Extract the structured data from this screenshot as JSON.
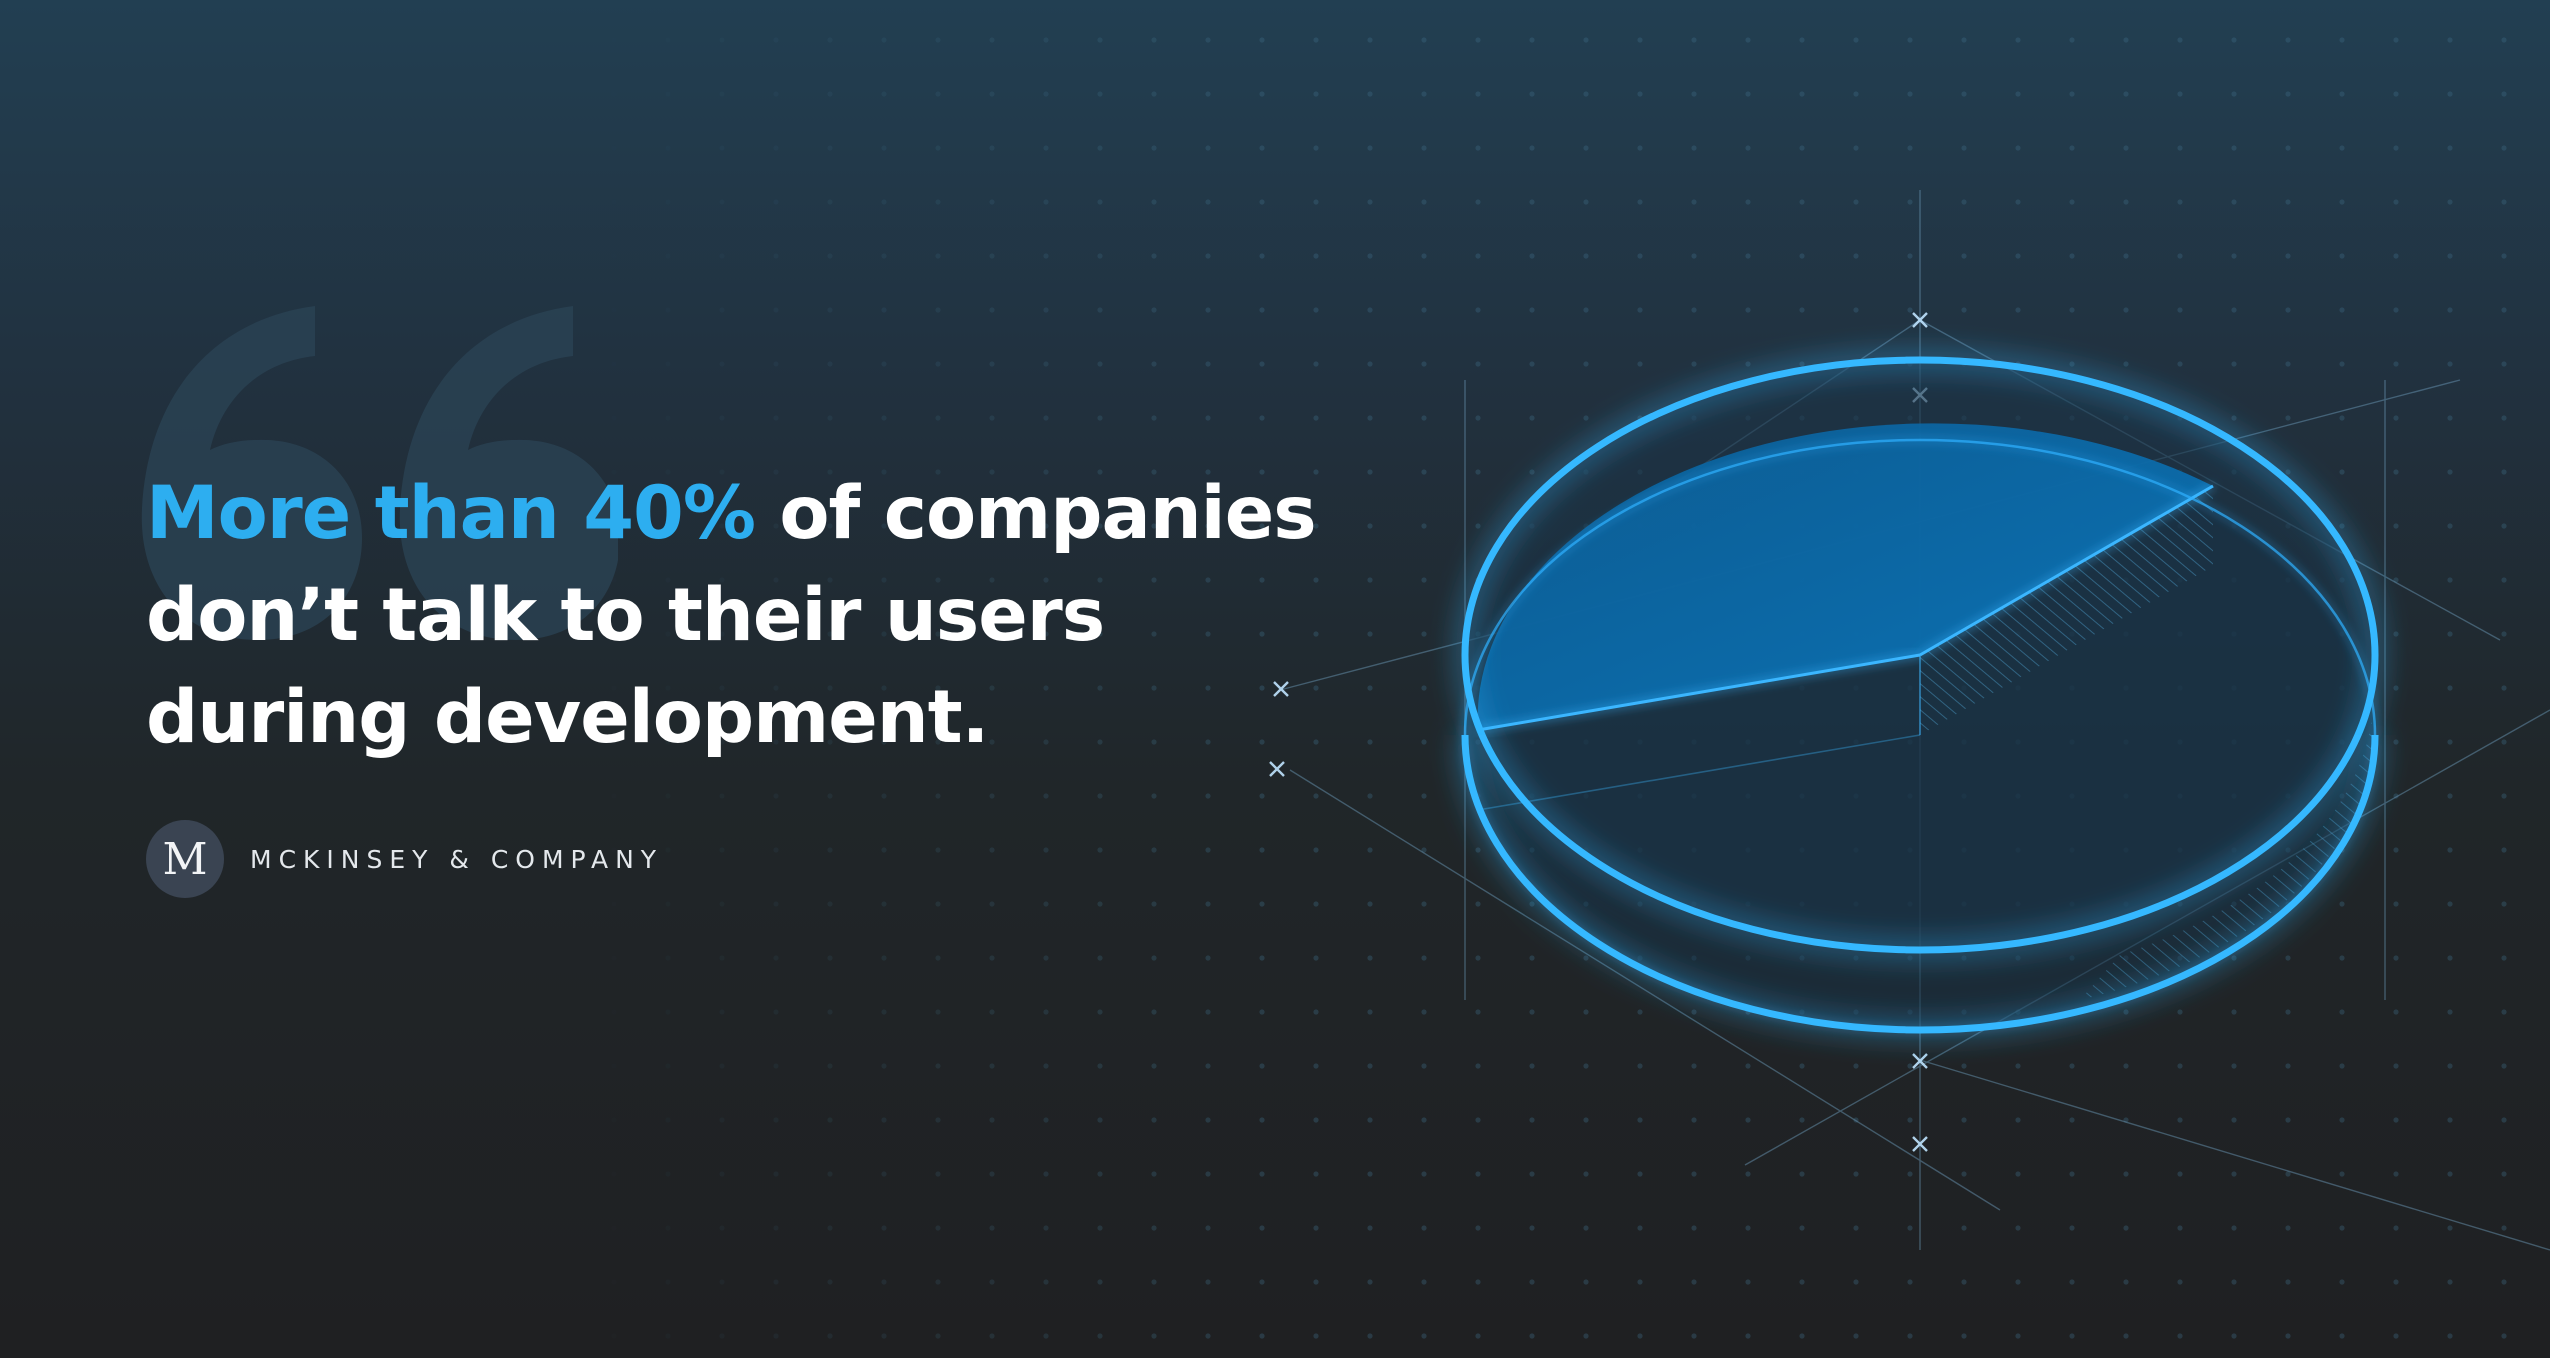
{
  "headline": {
    "highlight": "More than 40%",
    "rest": " of companies don’t talk to their users during development."
  },
  "source": {
    "avatar_letter": "M",
    "label": "MCKINSEY & COMPANY"
  },
  "colors": {
    "accent": "#2daef0",
    "glow": "#29b5ff",
    "text": "#ffffff",
    "background_top": "#223f52",
    "background_bottom": "#1f2022"
  },
  "icons": {
    "quote": "open-quote-icon",
    "pie": "pie-chart-illustration"
  }
}
